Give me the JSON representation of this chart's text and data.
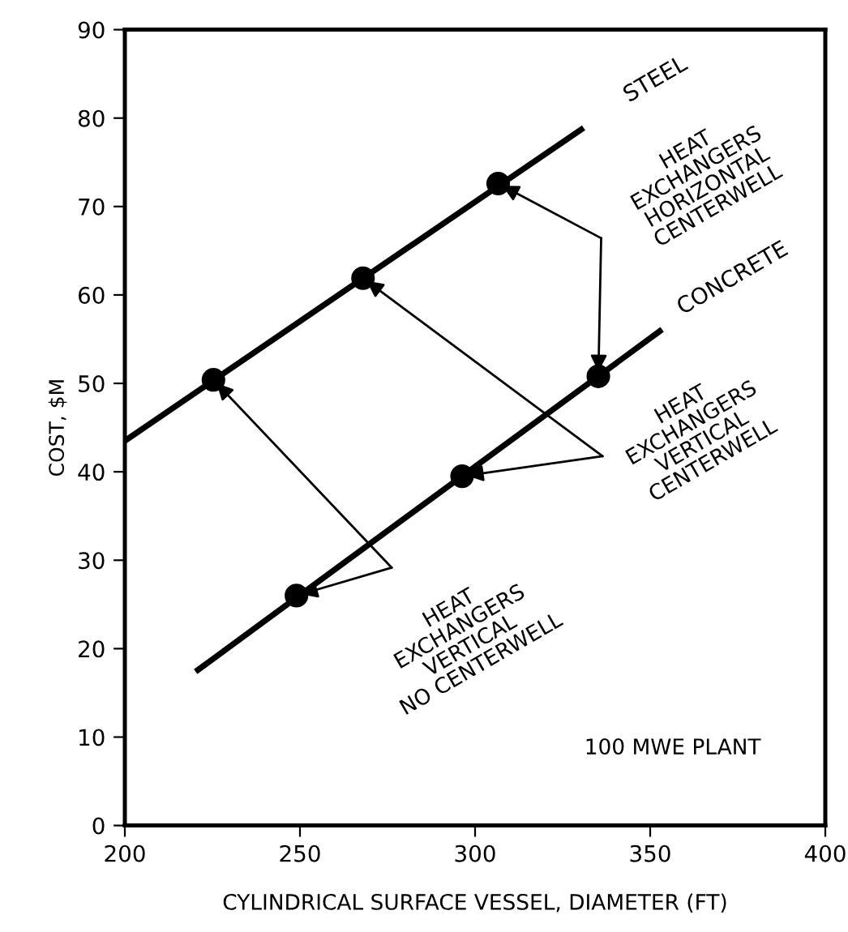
{
  "chart_data": {
    "type": "line",
    "xlabel": "CYLINDRICAL SURFACE VESSEL, DIAMETER (FT)",
    "ylabel": "COST, $M",
    "xlim": [
      200,
      400
    ],
    "xticks": [
      200,
      250,
      300,
      350,
      400
    ],
    "ylim": [
      0,
      90
    ],
    "yticks": [
      0,
      10,
      20,
      30,
      40,
      50,
      60,
      70,
      80,
      90
    ],
    "grid": false,
    "legend": false,
    "series": [
      {
        "name": "STEEL",
        "type": "line",
        "color": "#000000",
        "x": [
          200,
          331
        ],
        "values": [
          43.5,
          78.9
        ]
      },
      {
        "name": "CONCRETE",
        "type": "line",
        "color": "#000000",
        "x": [
          220.2,
          353.4
        ],
        "values": [
          17.4,
          56.1
        ]
      },
      {
        "type": "scatter",
        "marker": "circle",
        "color": "#000000",
        "x": [
          225.3,
          268,
          306.6
        ],
        "values": [
          50.4,
          61.9,
          72.6
        ]
      },
      {
        "type": "scatter",
        "marker": "circle",
        "color": "#000000",
        "x": [
          249,
          296.3,
          335.2
        ],
        "values": [
          26.0,
          39.5,
          50.8
        ]
      }
    ],
    "annotations": [
      {
        "text": "HEAT\nEXCHANGERS\nVERTICAL\nNO CENTERWELL",
        "x": 225.3,
        "y": 50.4
      },
      {
        "text": "HEAT\nEXCHANGERS\nVERTICAL\nCENTERWELL",
        "x": 268,
        "y": 61.9
      },
      "HEAT\nEXCHANGERS\nHORIZONTAL\nCENTERWELL",
      "100 MWE PLANT"
    ]
  }
}
